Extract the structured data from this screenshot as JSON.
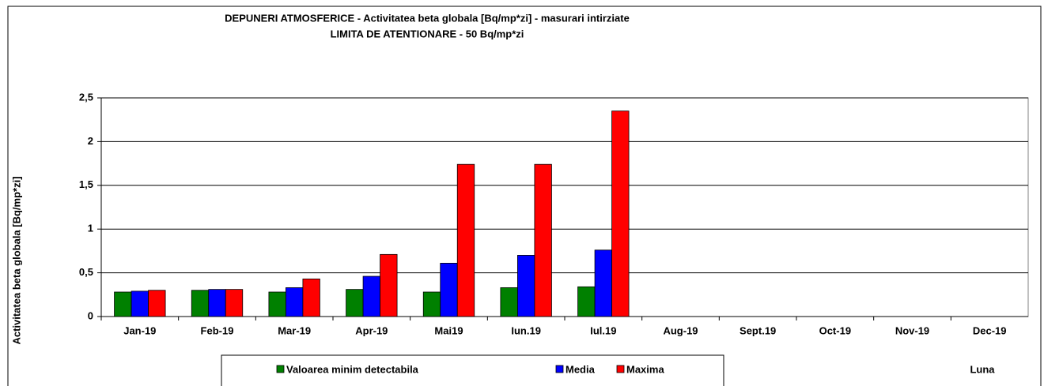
{
  "chart_data": {
    "type": "bar",
    "title": "DEPUNERI ATMOSFERICE - Activitatea beta globala [Bq/mp*zi] - masurari intirziate",
    "subtitle": "LIMITA DE ATENTIONARE - 50 Bq/mp*zi",
    "y_label": "Activitatea beta globala [Bq/mp*zi]",
    "x_label": "Luna",
    "categories": [
      "Jan-19",
      "Feb-19",
      "Mar-19",
      "Apr-19",
      "Mai19",
      "Iun.19",
      "Iul.19",
      "Aug-19",
      "Sept.19",
      "Oct-19",
      "Nov-19",
      "Dec-19"
    ],
    "series": [
      {
        "name": "Valoarea minim detectabila",
        "color": "#008000",
        "values": [
          0.28,
          0.3,
          0.28,
          0.31,
          0.28,
          0.33,
          0.34,
          null,
          null,
          null,
          null,
          null
        ]
      },
      {
        "name": "Media",
        "color": "#0000ff",
        "values": [
          0.29,
          0.31,
          0.33,
          0.46,
          0.61,
          0.7,
          0.76,
          null,
          null,
          null,
          null,
          null
        ]
      },
      {
        "name": "Maxima",
        "color": "#ff0000",
        "values": [
          0.3,
          0.31,
          0.43,
          0.71,
          1.74,
          1.74,
          2.35,
          null,
          null,
          null,
          null,
          null
        ]
      }
    ],
    "ylim": [
      0,
      2.5
    ],
    "yticks": [
      0,
      {
        "value": 0.5,
        "label": "0,5"
      },
      1,
      {
        "value": 1.5,
        "label": "1,5"
      },
      2,
      {
        "value": 2.5,
        "label": "2,5"
      }
    ],
    "grid": true
  }
}
